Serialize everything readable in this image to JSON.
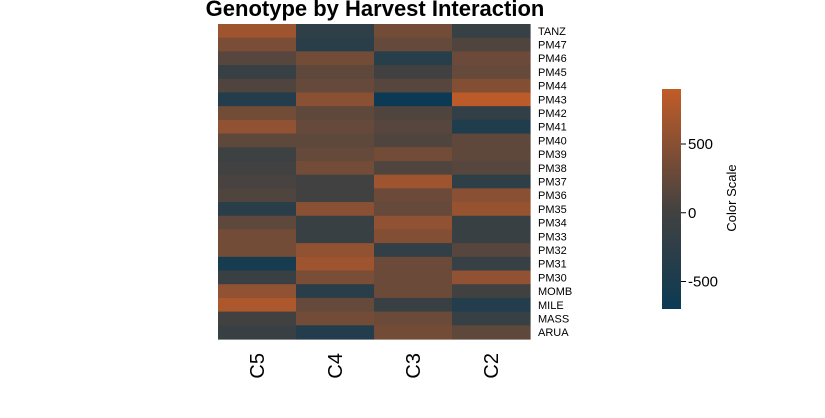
{
  "chart_data": {
    "type": "heatmap",
    "title": "Genotype by Harvest Interaction",
    "columns": [
      "C5",
      "C4",
      "C3",
      "C2"
    ],
    "rows": [
      "TANZ",
      "PM47",
      "PM46",
      "PM45",
      "PM44",
      "PM43",
      "PM42",
      "PM41",
      "PM40",
      "PM39",
      "PM38",
      "PM37",
      "PM36",
      "PM35",
      "PM34",
      "PM33",
      "PM32",
      "PM31",
      "PM30",
      "MOMB",
      "MILE",
      "MASS",
      "ARUA"
    ],
    "values": [
      [
        650,
        -250,
        350,
        -150
      ],
      [
        400,
        -300,
        250,
        100
      ],
      [
        150,
        350,
        -350,
        300
      ],
      [
        -150,
        200,
        0,
        250
      ],
      [
        100,
        250,
        150,
        450
      ],
      [
        -400,
        500,
        -800,
        850
      ],
      [
        350,
        200,
        100,
        -200
      ],
      [
        550,
        250,
        150,
        -450
      ],
      [
        200,
        200,
        100,
        200
      ],
      [
        -50,
        250,
        350,
        200
      ],
      [
        0,
        350,
        100,
        150
      ],
      [
        50,
        0,
        650,
        -250
      ],
      [
        100,
        0,
        300,
        500
      ],
      [
        -300,
        500,
        250,
        600
      ],
      [
        200,
        -100,
        550,
        -100
      ],
      [
        350,
        -100,
        450,
        -100
      ],
      [
        350,
        550,
        -200,
        150
      ],
      [
        -550,
        650,
        300,
        -150
      ],
      [
        -100,
        400,
        300,
        550
      ],
      [
        550,
        -300,
        300,
        0
      ],
      [
        750,
        250,
        -100,
        -400
      ],
      [
        0,
        350,
        300,
        -150
      ],
      [
        -100,
        -400,
        350,
        200
      ]
    ],
    "color_scale": {
      "title": "Color Scale",
      "low_color": "#0c3a54",
      "mid_color": "#414141",
      "high_color": "#c25c28",
      "min": -700,
      "max": 900,
      "ticks": [
        500,
        0,
        -500
      ],
      "tick_labels": [
        "500",
        "0",
        "-500"
      ]
    }
  }
}
